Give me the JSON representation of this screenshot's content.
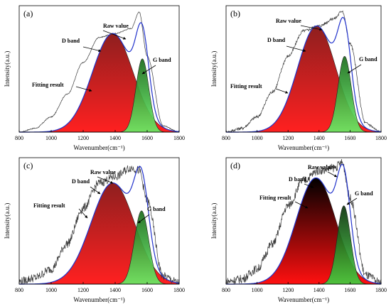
{
  "chart_data": [
    {
      "type": "area",
      "panel_label": "(a)",
      "xlabel": "Wavenumber(cm⁻¹)",
      "ylabel": "Intensity(a.u.)",
      "xlim": [
        800,
        1800
      ],
      "xticks": [
        800,
        1000,
        1200,
        1400,
        1600,
        1800
      ],
      "ylim": [
        0,
        1
      ],
      "annotations": [
        "Raw value",
        "D band",
        "G band",
        "Fitting result"
      ],
      "d_band": {
        "center": 1385,
        "fwhm": 300,
        "height": 0.78,
        "color_top": "#8e1f1f",
        "color_bottom": "#ff2020"
      },
      "g_band": {
        "center": 1570,
        "fwhm": 95,
        "height": 0.58,
        "color_top": "#1a6b1a",
        "color_bottom": "#66ee66"
      },
      "raw_noise": "smooth",
      "x": [
        800,
        900,
        1000,
        1100,
        1200,
        1300,
        1400,
        1500,
        1550,
        1600,
        1700,
        1800
      ],
      "raw_value": [
        0.0,
        0.03,
        0.12,
        0.3,
        0.55,
        0.75,
        0.78,
        0.82,
        0.95,
        0.6,
        0.05,
        0.0
      ]
    },
    {
      "type": "area",
      "panel_label": "(b)",
      "xlabel": "Wavenumber(cm⁻¹)",
      "ylabel": "Intensity(a.u.)",
      "xlim": [
        800,
        1800
      ],
      "xticks": [
        800,
        1000,
        1200,
        1400,
        1600,
        1800
      ],
      "ylim": [
        0,
        1
      ],
      "annotations": [
        "Raw value",
        "D band",
        "G band",
        "Fitting result"
      ],
      "d_band": {
        "center": 1385,
        "fwhm": 290,
        "height": 0.84,
        "color_top": "#8e1f1f",
        "color_bottom": "#ff2020"
      },
      "g_band": {
        "center": 1565,
        "fwhm": 100,
        "height": 0.6,
        "color_top": "#1a6b1a",
        "color_bottom": "#66ee66"
      },
      "raw_noise": "slight",
      "x": [
        800,
        900,
        1000,
        1100,
        1200,
        1300,
        1400,
        1500,
        1550,
        1600,
        1700,
        1800
      ],
      "raw_value": [
        0.0,
        0.03,
        0.12,
        0.32,
        0.6,
        0.8,
        0.84,
        0.9,
        0.96,
        0.7,
        0.07,
        0.0
      ]
    },
    {
      "type": "area",
      "panel_label": "(c)",
      "xlabel": "Wavenumber(cm⁻¹)",
      "ylabel": "Intensity(a.u.)",
      "xlim": [
        800,
        1800
      ],
      "xticks": [
        800,
        1000,
        1200,
        1400,
        1600,
        1800
      ],
      "ylim": [
        0,
        1
      ],
      "annotations": [
        "Raw value",
        "D band",
        "G band",
        "Fitting result"
      ],
      "d_band": {
        "center": 1385,
        "fwhm": 320,
        "height": 0.8,
        "color_top": "#8e1f1f",
        "color_bottom": "#ff2020"
      },
      "g_band": {
        "center": 1565,
        "fwhm": 105,
        "height": 0.58,
        "color_top": "#1a6b1a",
        "color_bottom": "#66ee66"
      },
      "raw_noise": "noisy",
      "x": [
        800,
        900,
        1000,
        1100,
        1200,
        1300,
        1400,
        1500,
        1550,
        1600,
        1700,
        1800
      ],
      "raw_value": [
        0.02,
        0.05,
        0.12,
        0.32,
        0.6,
        0.8,
        0.85,
        0.92,
        0.9,
        0.66,
        0.06,
        0.01
      ]
    },
    {
      "type": "area",
      "panel_label": "(d)",
      "xlabel": "Wavenumber(cm⁻¹)",
      "ylabel": "Intensity(a.u.)",
      "xlim": [
        800,
        1800
      ],
      "xticks": [
        800,
        1000,
        1200,
        1400,
        1600,
        1800
      ],
      "ylim": [
        0,
        1
      ],
      "annotations": [
        "Raw value",
        "D band",
        "G band",
        "Fitting result"
      ],
      "d_band": {
        "center": 1380,
        "fwhm": 300,
        "height": 0.84,
        "color_top": "#000000",
        "color_bottom": "#ff1010"
      },
      "g_band": {
        "center": 1560,
        "fwhm": 100,
        "height": 0.62,
        "color_top": "#0a300a",
        "color_bottom": "#40d040"
      },
      "raw_noise": "noisy",
      "x": [
        800,
        900,
        1000,
        1100,
        1200,
        1300,
        1400,
        1500,
        1550,
        1600,
        1700,
        1800
      ],
      "raw_value": [
        0.02,
        0.04,
        0.12,
        0.32,
        0.62,
        0.82,
        0.9,
        0.92,
        0.96,
        0.68,
        0.07,
        0.01
      ]
    }
  ]
}
